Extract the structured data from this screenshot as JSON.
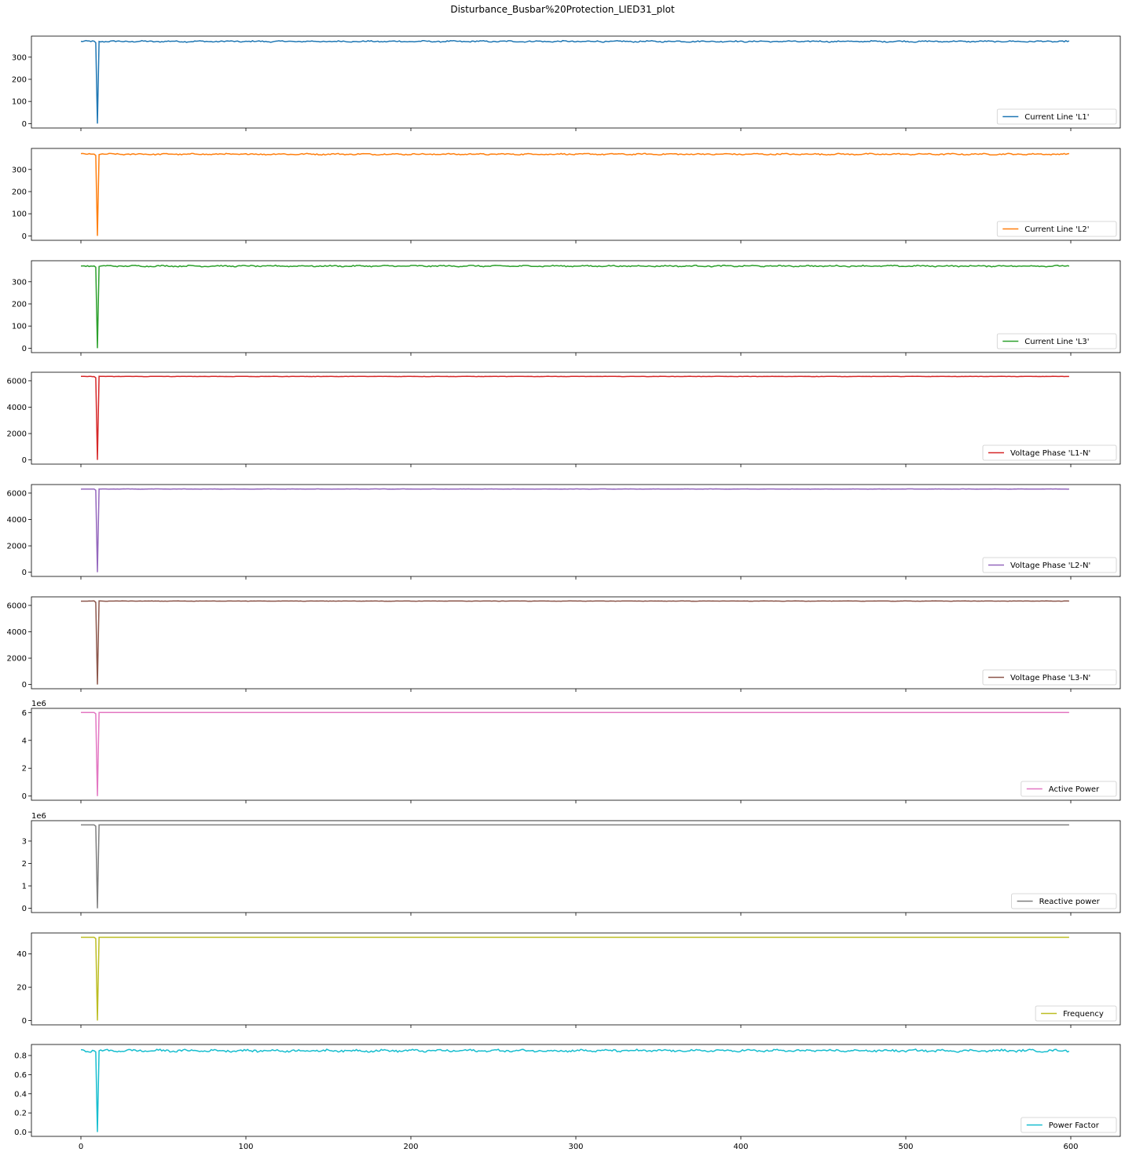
{
  "figure": {
    "title": "Disturbance_Busbar%20Protection_LIED31_plot"
  },
  "chart_data": [
    {
      "type": "line",
      "series": [
        {
          "name": "Current Line 'L1'",
          "color": "#1f77b4"
        }
      ],
      "baseline": 371,
      "noise": 3,
      "dip_min": 0,
      "xlim": [
        -30,
        630
      ],
      "ylim": [
        -20,
        395
      ],
      "yticks": [
        0,
        100,
        200,
        300
      ],
      "ytick_labels": [
        "0",
        "100",
        "200",
        "300"
      ],
      "offset_text": "",
      "legend": "lower-right"
    },
    {
      "type": "line",
      "series": [
        {
          "name": "Current Line 'L2'",
          "color": "#ff7f0e"
        }
      ],
      "baseline": 369,
      "noise": 3,
      "dip_min": 0,
      "xlim": [
        -30,
        630
      ],
      "ylim": [
        -20,
        395
      ],
      "yticks": [
        0,
        100,
        200,
        300
      ],
      "ytick_labels": [
        "0",
        "100",
        "200",
        "300"
      ],
      "offset_text": "",
      "legend": "lower-right"
    },
    {
      "type": "line",
      "series": [
        {
          "name": "Current Line 'L3'",
          "color": "#2ca02c"
        }
      ],
      "baseline": 371,
      "noise": 3,
      "dip_min": 0,
      "xlim": [
        -30,
        630
      ],
      "ylim": [
        -20,
        395
      ],
      "yticks": [
        0,
        100,
        200,
        300
      ],
      "ytick_labels": [
        "0",
        "100",
        "200",
        "300"
      ],
      "offset_text": "",
      "legend": "lower-right"
    },
    {
      "type": "line",
      "series": [
        {
          "name": "Voltage Phase 'L1-N'",
          "color": "#d62728"
        }
      ],
      "baseline": 6330,
      "noise": 12,
      "dip_min": 0,
      "xlim": [
        -30,
        630
      ],
      "ylim": [
        -320,
        6650
      ],
      "yticks": [
        0,
        2000,
        4000,
        6000
      ],
      "ytick_labels": [
        "0",
        "2000",
        "4000",
        "6000"
      ],
      "offset_text": "",
      "legend": "lower-right"
    },
    {
      "type": "line",
      "series": [
        {
          "name": "Voltage Phase 'L2-N'",
          "color": "#9467bd"
        }
      ],
      "baseline": 6310,
      "noise": 12,
      "dip_min": 0,
      "xlim": [
        -30,
        630
      ],
      "ylim": [
        -320,
        6650
      ],
      "yticks": [
        0,
        2000,
        4000,
        6000
      ],
      "ytick_labels": [
        "0",
        "2000",
        "4000",
        "6000"
      ],
      "offset_text": "",
      "legend": "lower-right"
    },
    {
      "type": "line",
      "series": [
        {
          "name": "Voltage Phase 'L3-N'",
          "color": "#8c564b"
        }
      ],
      "baseline": 6330,
      "noise": 12,
      "dip_min": 0,
      "xlim": [
        -30,
        630
      ],
      "ylim": [
        -320,
        6650
      ],
      "yticks": [
        0,
        2000,
        4000,
        6000
      ],
      "ytick_labels": [
        "0",
        "2000",
        "4000",
        "6000"
      ],
      "offset_text": "",
      "legend": "lower-right"
    },
    {
      "type": "line",
      "series": [
        {
          "name": "Active Power",
          "color": "#e377c2"
        }
      ],
      "baseline": 6000000,
      "noise": 0,
      "dip_min": 0,
      "xlim": [
        -30,
        630
      ],
      "ylim": [
        -300000,
        6300000
      ],
      "yticks": [
        0,
        2000000,
        4000000,
        6000000
      ],
      "ytick_labels": [
        "0",
        "2",
        "4",
        "6"
      ],
      "offset_text": "1e6",
      "legend": "lower-right"
    },
    {
      "type": "line",
      "series": [
        {
          "name": "Reactive power",
          "color": "#7f7f7f"
        }
      ],
      "baseline": 3720000,
      "noise": 0,
      "dip_min": 0,
      "xlim": [
        -30,
        630
      ],
      "ylim": [
        -190000,
        3910000
      ],
      "yticks": [
        0,
        1000000,
        2000000,
        3000000
      ],
      "ytick_labels": [
        "0",
        "1",
        "2",
        "3"
      ],
      "offset_text": "1e6",
      "legend": "lower-right"
    },
    {
      "type": "line",
      "series": [
        {
          "name": "Frequency",
          "color": "#bcbd22"
        }
      ],
      "baseline": 50,
      "noise": 0,
      "dip_min": 0,
      "xlim": [
        -30,
        630
      ],
      "ylim": [
        -2.6,
        52.6
      ],
      "yticks": [
        0,
        20,
        40
      ],
      "ytick_labels": [
        "0",
        "20",
        "40"
      ],
      "offset_text": "",
      "legend": "lower-right"
    },
    {
      "type": "line",
      "series": [
        {
          "name": "Power Factor",
          "color": "#17becf"
        }
      ],
      "baseline": 0.85,
      "noise": 0.012,
      "dip_min": 0,
      "xlim": [
        -30,
        630
      ],
      "ylim": [
        -0.045,
        0.915
      ],
      "yticks": [
        0,
        0.2,
        0.4,
        0.6,
        0.8
      ],
      "ytick_labels": [
        "0.0",
        "0.2",
        "0.4",
        "0.6",
        "0.8"
      ],
      "offset_text": "",
      "legend": "lower-right"
    }
  ],
  "x_axis": {
    "ticks": [
      0,
      100,
      200,
      300,
      400,
      500,
      600
    ],
    "tick_labels": [
      "0",
      "100",
      "200",
      "300",
      "400",
      "500",
      "600"
    ],
    "n_points": 600,
    "dip_x": 10
  }
}
